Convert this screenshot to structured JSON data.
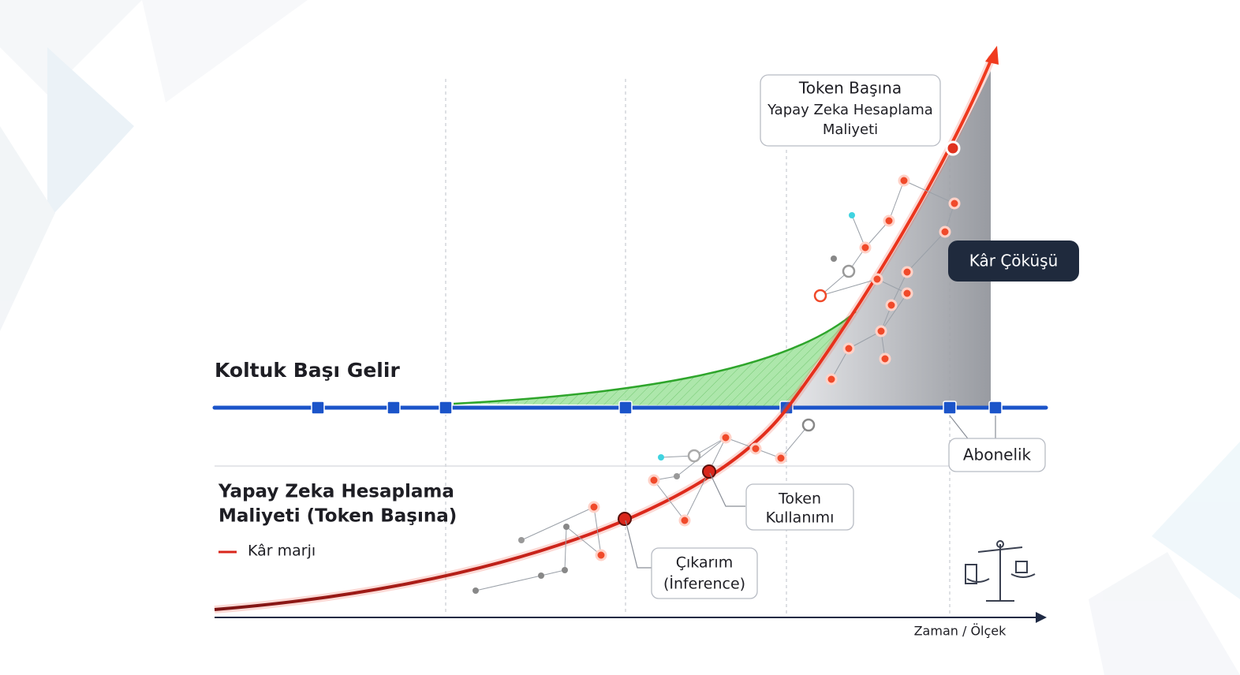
{
  "revenue_label": "Koltuk Başı Gelir",
  "cost_label": [
    "Yapay Zeka Hesaplama",
    "Maliyeti (Token Başına)"
  ],
  "legend": "Kâr marjı",
  "x_axis_label": "Zaman / Ölçek",
  "callouts": {
    "token_cost": [
      "Token Başına",
      "Yapay Zeka Hesaplama",
      "Maliyeti"
    ],
    "collapse": "Kâr Çöküşü",
    "subscription": "Abonelik",
    "token_usage": [
      "Token",
      "Kullanımı"
    ],
    "inference": [
      "Çıkarım",
      "(İnference)"
    ]
  }
}
